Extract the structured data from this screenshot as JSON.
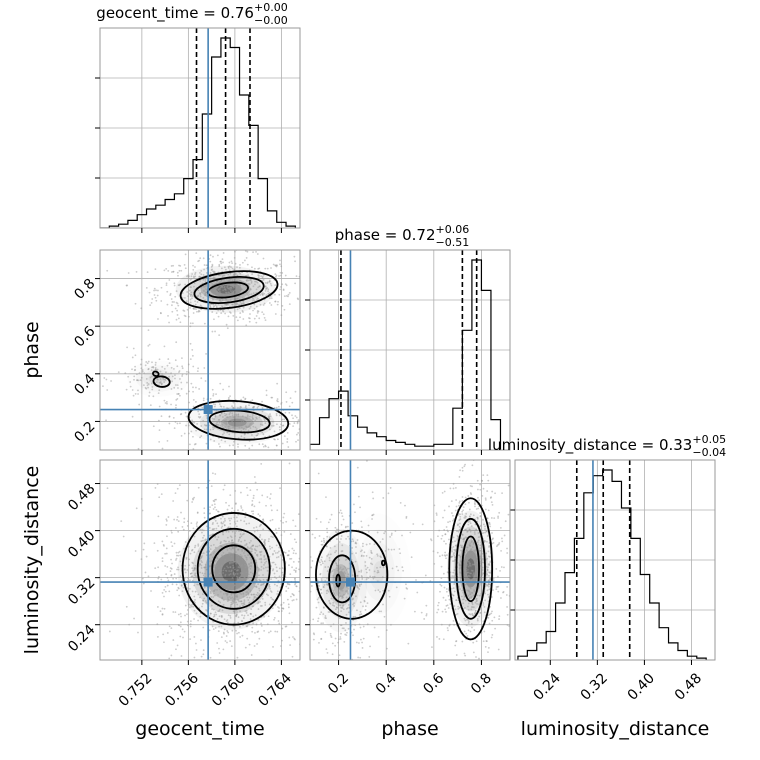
{
  "chart_data": {
    "type": "corner",
    "colors": {
      "truth": "#4682b4",
      "hist": "#000000",
      "grid": "#b0b0b0",
      "scatter": "#9a9a9a",
      "frame": "#999999"
    },
    "parameters": [
      {
        "key": "geocent_time",
        "label": "geocent_time",
        "title": "geocent_time = 0.76",
        "title_sup": "+0.00",
        "title_sub": "−0.00",
        "range": [
          0.7484,
          0.7656
        ],
        "ticks": [
          0.752,
          0.756,
          0.76,
          0.764
        ],
        "tick_labels": [
          "0.752",
          "0.756",
          "0.760",
          "0.764"
        ],
        "truth": 0.7577,
        "quantiles": [
          0.7567,
          0.7592,
          0.7613
        ],
        "hist_bins": [
          0.7484,
          0.7492,
          0.75,
          0.7508,
          0.7516,
          0.7524,
          0.7532,
          0.754,
          0.7548,
          0.7556,
          0.7564,
          0.7572,
          0.758,
          0.7588,
          0.7596,
          0.7604,
          0.7612,
          0.762,
          0.7628,
          0.7636,
          0.7644,
          0.7652
        ],
        "hist_counts": [
          0,
          1,
          2,
          4,
          7,
          10,
          12,
          15,
          18,
          26,
          36,
          60,
          90,
          100,
          95,
          70,
          54,
          26,
          9,
          3,
          1
        ]
      },
      {
        "key": "phase",
        "label": "phase",
        "title": "phase = 0.72",
        "title_sup": "+0.06",
        "title_sub": "−0.51",
        "range": [
          0.08,
          0.92
        ],
        "ticks": [
          0.2,
          0.4,
          0.6,
          0.8
        ],
        "tick_labels": [
          "0.2",
          "0.4",
          "0.6",
          "0.8"
        ],
        "truth": 0.25,
        "quantiles": [
          0.21,
          0.72,
          0.78
        ],
        "hist_bins": [
          0.08,
          0.12,
          0.16,
          0.2,
          0.24,
          0.28,
          0.32,
          0.36,
          0.4,
          0.44,
          0.48,
          0.52,
          0.56,
          0.6,
          0.64,
          0.68,
          0.72,
          0.76,
          0.8,
          0.84,
          0.88
        ],
        "hist_counts": [
          3,
          17,
          27,
          31,
          18,
          12,
          9,
          7,
          5,
          4,
          3,
          2,
          2,
          3,
          3,
          22,
          63,
          100,
          84,
          16
        ]
      },
      {
        "key": "luminosity_distance",
        "label": "luminosity_distance",
        "title": "luminosity_distance = 0.33",
        "title_sup": "+0.05",
        "title_sub": "−0.04",
        "range": [
          0.18,
          0.52
        ],
        "ticks": [
          0.24,
          0.32,
          0.4,
          0.48
        ],
        "tick_labels": [
          "0.24",
          "0.32",
          "0.40",
          "0.48"
        ],
        "truth": 0.3125,
        "quantiles": [
          0.285,
          0.33,
          0.375
        ],
        "hist_bins": [
          0.185,
          0.201,
          0.217,
          0.233,
          0.249,
          0.265,
          0.281,
          0.297,
          0.313,
          0.329,
          0.345,
          0.361,
          0.377,
          0.393,
          0.409,
          0.425,
          0.441,
          0.457,
          0.473,
          0.489,
          0.505
        ],
        "hist_counts": [
          2,
          5,
          9,
          15,
          30,
          46,
          64,
          88,
          97,
          100,
          94,
          80,
          64,
          45,
          30,
          17,
          9,
          5,
          2,
          1
        ]
      }
    ],
    "pairs": [
      {
        "x": "geocent_time",
        "y": "phase",
        "modes": [
          {
            "cx": 0.7592,
            "cy": 0.755,
            "sx": 0.00195,
            "sy": 0.045,
            "weight": 0.55
          },
          {
            "cx": 0.7602,
            "cy": 0.195,
            "sx": 0.002,
            "sy": 0.042,
            "weight": 0.33
          },
          {
            "cx": 0.7534,
            "cy": 0.38,
            "sx": 0.0012,
            "sy": 0.035,
            "weight": 0.12
          }
        ],
        "contours": [
          {
            "cx": 0.7595,
            "cy": 0.752,
            "rx": 0.0042,
            "ry": 0.075,
            "tilt": -0.25
          },
          {
            "cx": 0.7595,
            "cy": 0.752,
            "rx": 0.003,
            "ry": 0.052,
            "tilt": -0.25
          },
          {
            "cx": 0.7594,
            "cy": 0.752,
            "rx": 0.00175,
            "ry": 0.03,
            "tilt": -0.25
          },
          {
            "cx": 0.7603,
            "cy": 0.205,
            "rx": 0.0043,
            "ry": 0.08,
            "tilt": 0.15
          },
          {
            "cx": 0.7604,
            "cy": 0.2,
            "rx": 0.0026,
            "ry": 0.045,
            "tilt": 0.15
          },
          {
            "cx": 0.7537,
            "cy": 0.367,
            "rx": 0.0007,
            "ry": 0.022,
            "tilt": 0.2
          },
          {
            "cx": 0.7532,
            "cy": 0.4,
            "rx": 0.00025,
            "ry": 0.009,
            "tilt": 0.6
          }
        ],
        "truth": [
          0.7577,
          0.25
        ]
      },
      {
        "x": "geocent_time",
        "y": "luminosity_distance",
        "modes": [
          {
            "cx": 0.7597,
            "cy": 0.33,
            "sx": 0.0021,
            "sy": 0.045,
            "weight": 1.0
          }
        ],
        "contours": [
          {
            "cx": 0.7599,
            "cy": 0.335,
            "rx": 0.0044,
            "ry": 0.095,
            "tilt": 0
          },
          {
            "cx": 0.7599,
            "cy": 0.335,
            "rx": 0.0031,
            "ry": 0.068,
            "tilt": 0
          },
          {
            "cx": 0.7599,
            "cy": 0.335,
            "rx": 0.00185,
            "ry": 0.04,
            "tilt": 0
          }
        ],
        "truth": [
          0.7577,
          0.3125
        ]
      },
      {
        "x": "phase",
        "y": "luminosity_distance",
        "modes": [
          {
            "cx": 0.755,
            "cy": 0.335,
            "sx": 0.045,
            "sy": 0.045,
            "weight": 0.62
          },
          {
            "cx": 0.21,
            "cy": 0.315,
            "sx": 0.05,
            "sy": 0.04,
            "weight": 0.3
          },
          {
            "cx": 0.37,
            "cy": 0.33,
            "sx": 0.06,
            "sy": 0.045,
            "weight": 0.08
          }
        ],
        "contours": [
          {
            "cx": 0.755,
            "cy": 0.335,
            "rx": 0.09,
            "ry": 0.12,
            "tilt": 0
          },
          {
            "cx": 0.755,
            "cy": 0.335,
            "rx": 0.06,
            "ry": 0.085,
            "tilt": 0
          },
          {
            "cx": 0.755,
            "cy": 0.335,
            "rx": 0.035,
            "ry": 0.055,
            "tilt": 0
          },
          {
            "cx": 0.255,
            "cy": 0.325,
            "rx": 0.15,
            "ry": 0.075,
            "tilt": 0
          },
          {
            "cx": 0.215,
            "cy": 0.318,
            "rx": 0.055,
            "ry": 0.04,
            "tilt": 0
          },
          {
            "cx": 0.198,
            "cy": 0.315,
            "rx": 0.008,
            "ry": 0.01,
            "tilt": 0
          },
          {
            "cx": 0.388,
            "cy": 0.345,
            "rx": 0.006,
            "ry": 0.004,
            "tilt": 0
          }
        ],
        "truth": [
          0.25,
          0.3125
        ]
      }
    ]
  }
}
